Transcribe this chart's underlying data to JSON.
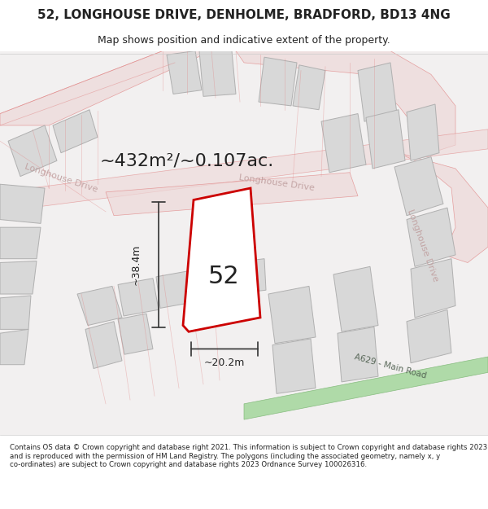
{
  "title_line1": "52, LONGHOUSE DRIVE, DENHOLME, BRADFORD, BD13 4NG",
  "title_line2": "Map shows position and indicative extent of the property.",
  "area_label": "~432m²/~0.107ac.",
  "number_label": "52",
  "width_label": "~20.2m",
  "height_label": "~38.4m",
  "road_label1": "Longhouse Drive",
  "road_label2": "Longhouse Drive",
  "road_label3": "Longhouse Drive",
  "road_label_main": "A629 - Main Road",
  "footer_text": "Contains OS data © Crown copyright and database right 2021. This information is subject to Crown copyright and database rights 2023 and is reproduced with the permission of HM Land Registry. The polygons (including the associated geometry, namely x, y co-ordinates) are subject to Crown copyright and database rights 2023 Ordnance Survey 100026316.",
  "bg_color": "#f5f5f5",
  "map_bg": "#f0eeee",
  "plot_outline_color": "#cc0000",
  "building_color": "#d8d8d8",
  "building_edge": "#b0b0b0",
  "road_color": "#e8c8c8",
  "road_line_color": "#e08080",
  "green_road_color": "#a8d8a0",
  "green_road_edge": "#80b878",
  "text_color_dark": "#222222",
  "road_text_color": "#c0a0a0",
  "dimension_color": "#333333",
  "figsize": [
    6.0,
    6.25
  ],
  "dpi": 100
}
